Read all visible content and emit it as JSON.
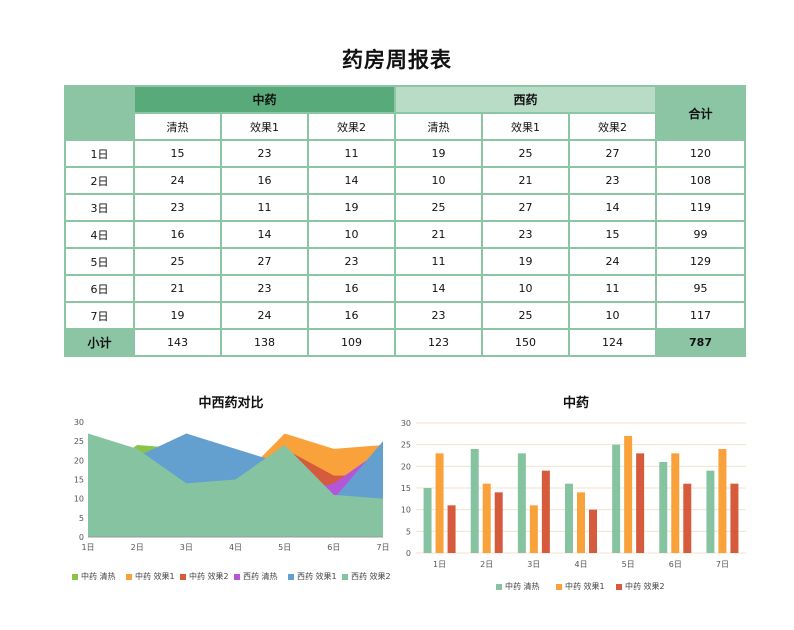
{
  "title": "药房周报表",
  "table": {
    "group_cn": "中药",
    "group_west": "西药",
    "total_header": "合计",
    "sub_headers": [
      "清热",
      "效果1",
      "效果2",
      "清热",
      "效果1",
      "效果2"
    ],
    "rows": [
      {
        "day": "1日",
        "values": [
          15,
          23,
          11,
          19,
          25,
          27
        ],
        "total": 120
      },
      {
        "day": "2日",
        "values": [
          24,
          16,
          14,
          10,
          21,
          23
        ],
        "total": 108
      },
      {
        "day": "3日",
        "values": [
          23,
          11,
          19,
          25,
          27,
          14
        ],
        "total": 119
      },
      {
        "day": "4日",
        "values": [
          16,
          14,
          10,
          21,
          23,
          15
        ],
        "total": 99
      },
      {
        "day": "5日",
        "values": [
          25,
          27,
          23,
          11,
          19,
          24
        ],
        "total": 129
      },
      {
        "day": "6日",
        "values": [
          21,
          23,
          16,
          14,
          10,
          11
        ],
        "total": 95
      },
      {
        "day": "7日",
        "values": [
          19,
          24,
          16,
          23,
          25,
          10
        ],
        "total": 117
      }
    ],
    "subtotal_label": "小计",
    "subtotals": [
      143,
      138,
      109,
      123,
      150,
      124
    ],
    "grand_total": 787
  },
  "chart_data": [
    {
      "type": "area",
      "title": "中西药对比",
      "categories": [
        "1日",
        "2日",
        "3日",
        "4日",
        "5日",
        "6日",
        "7日"
      ],
      "ylim": [
        0,
        30
      ],
      "yticks": [
        0,
        5,
        10,
        15,
        20,
        25,
        30
      ],
      "grid": false,
      "legend": "bottom",
      "series": [
        {
          "name": "中药 清热",
          "color": "#8bc34a",
          "values": [
            15,
            24,
            23,
            16,
            25,
            21,
            19
          ]
        },
        {
          "name": "中药 效果1",
          "color": "#f9a13a",
          "values": [
            23,
            16,
            11,
            14,
            27,
            23,
            24
          ]
        },
        {
          "name": "中药 效果2",
          "color": "#d65a3c",
          "values": [
            11,
            14,
            19,
            10,
            23,
            16,
            16
          ]
        },
        {
          "name": "西药 清热",
          "color": "#b556d6",
          "values": [
            19,
            10,
            25,
            21,
            11,
            14,
            23
          ]
        },
        {
          "name": "西药 效果1",
          "color": "#63a0d0",
          "values": [
            25,
            21,
            27,
            23,
            19,
            10,
            25
          ]
        },
        {
          "name": "西药 效果2",
          "color": "#86c4a1",
          "values": [
            27,
            23,
            14,
            15,
            24,
            11,
            10
          ]
        }
      ]
    },
    {
      "type": "bar",
      "title": "中药",
      "categories": [
        "1日",
        "2日",
        "3日",
        "4日",
        "5日",
        "6日",
        "7日"
      ],
      "ylim": [
        0,
        30
      ],
      "yticks": [
        0,
        5,
        10,
        15,
        20,
        25,
        30
      ],
      "grid": true,
      "legend": "bottom",
      "series": [
        {
          "name": "中药 清热",
          "color": "#86c4a1",
          "values": [
            15,
            24,
            23,
            16,
            25,
            21,
            19
          ]
        },
        {
          "name": "中药 效果1",
          "color": "#f9a13a",
          "values": [
            23,
            16,
            11,
            14,
            27,
            23,
            24
          ]
        },
        {
          "name": "中药 效果2",
          "color": "#d65a3c",
          "values": [
            11,
            14,
            19,
            10,
            23,
            16,
            16
          ]
        }
      ]
    }
  ]
}
